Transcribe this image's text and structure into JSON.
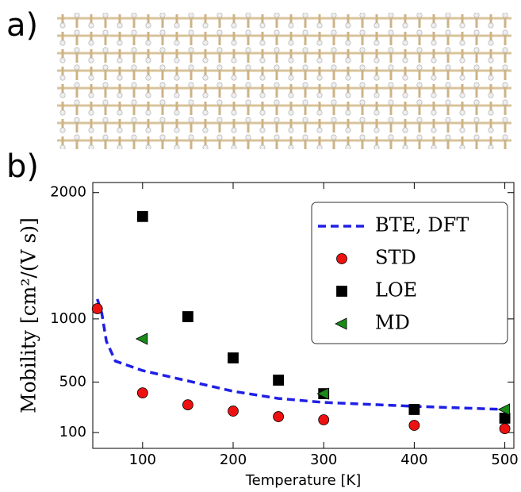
{
  "panel_labels": [
    "a)",
    "b)"
  ],
  "chart_data": {
    "type": "scatter",
    "xlabel": "Temperature [K]",
    "ylabel": "Mobility [cm²/(V s)]",
    "xlim": [
      45,
      510
    ],
    "xticks": [
      100,
      200,
      300,
      400,
      500
    ],
    "ylim": [
      -25,
      2080
    ],
    "yticks": [
      100,
      500,
      1000,
      2000
    ],
    "legend": "upper right",
    "series": [
      {
        "name": "BTE, DFT",
        "color": "#1f1fe6",
        "marker": "dashed-line",
        "x": [
          50,
          55,
          60,
          70,
          100,
          150,
          200,
          250,
          300,
          400,
          500
        ],
        "values": [
          1157,
          1043,
          823,
          666,
          591,
          509,
          427,
          370,
          339,
          308,
          283
        ]
      },
      {
        "name": "STD",
        "color": "#ee1111",
        "marker": "circle",
        "x": [
          50,
          100,
          150,
          200,
          250,
          300,
          400,
          500
        ],
        "values": [
          1081,
          414,
          320,
          270,
          226,
          201,
          157,
          131
        ]
      },
      {
        "name": "LOE",
        "color": "#000000",
        "marker": "square",
        "x": [
          100,
          150,
          200,
          250,
          300,
          400,
          500
        ],
        "values": [
          1811,
          1018,
          691,
          515,
          408,
          283,
          214
        ]
      },
      {
        "name": "MD",
        "color": "#1a8a1a",
        "marker": "triangle-left",
        "x": [
          100,
          300,
          500
        ],
        "values": [
          842,
          408,
          283
        ]
      }
    ]
  }
}
